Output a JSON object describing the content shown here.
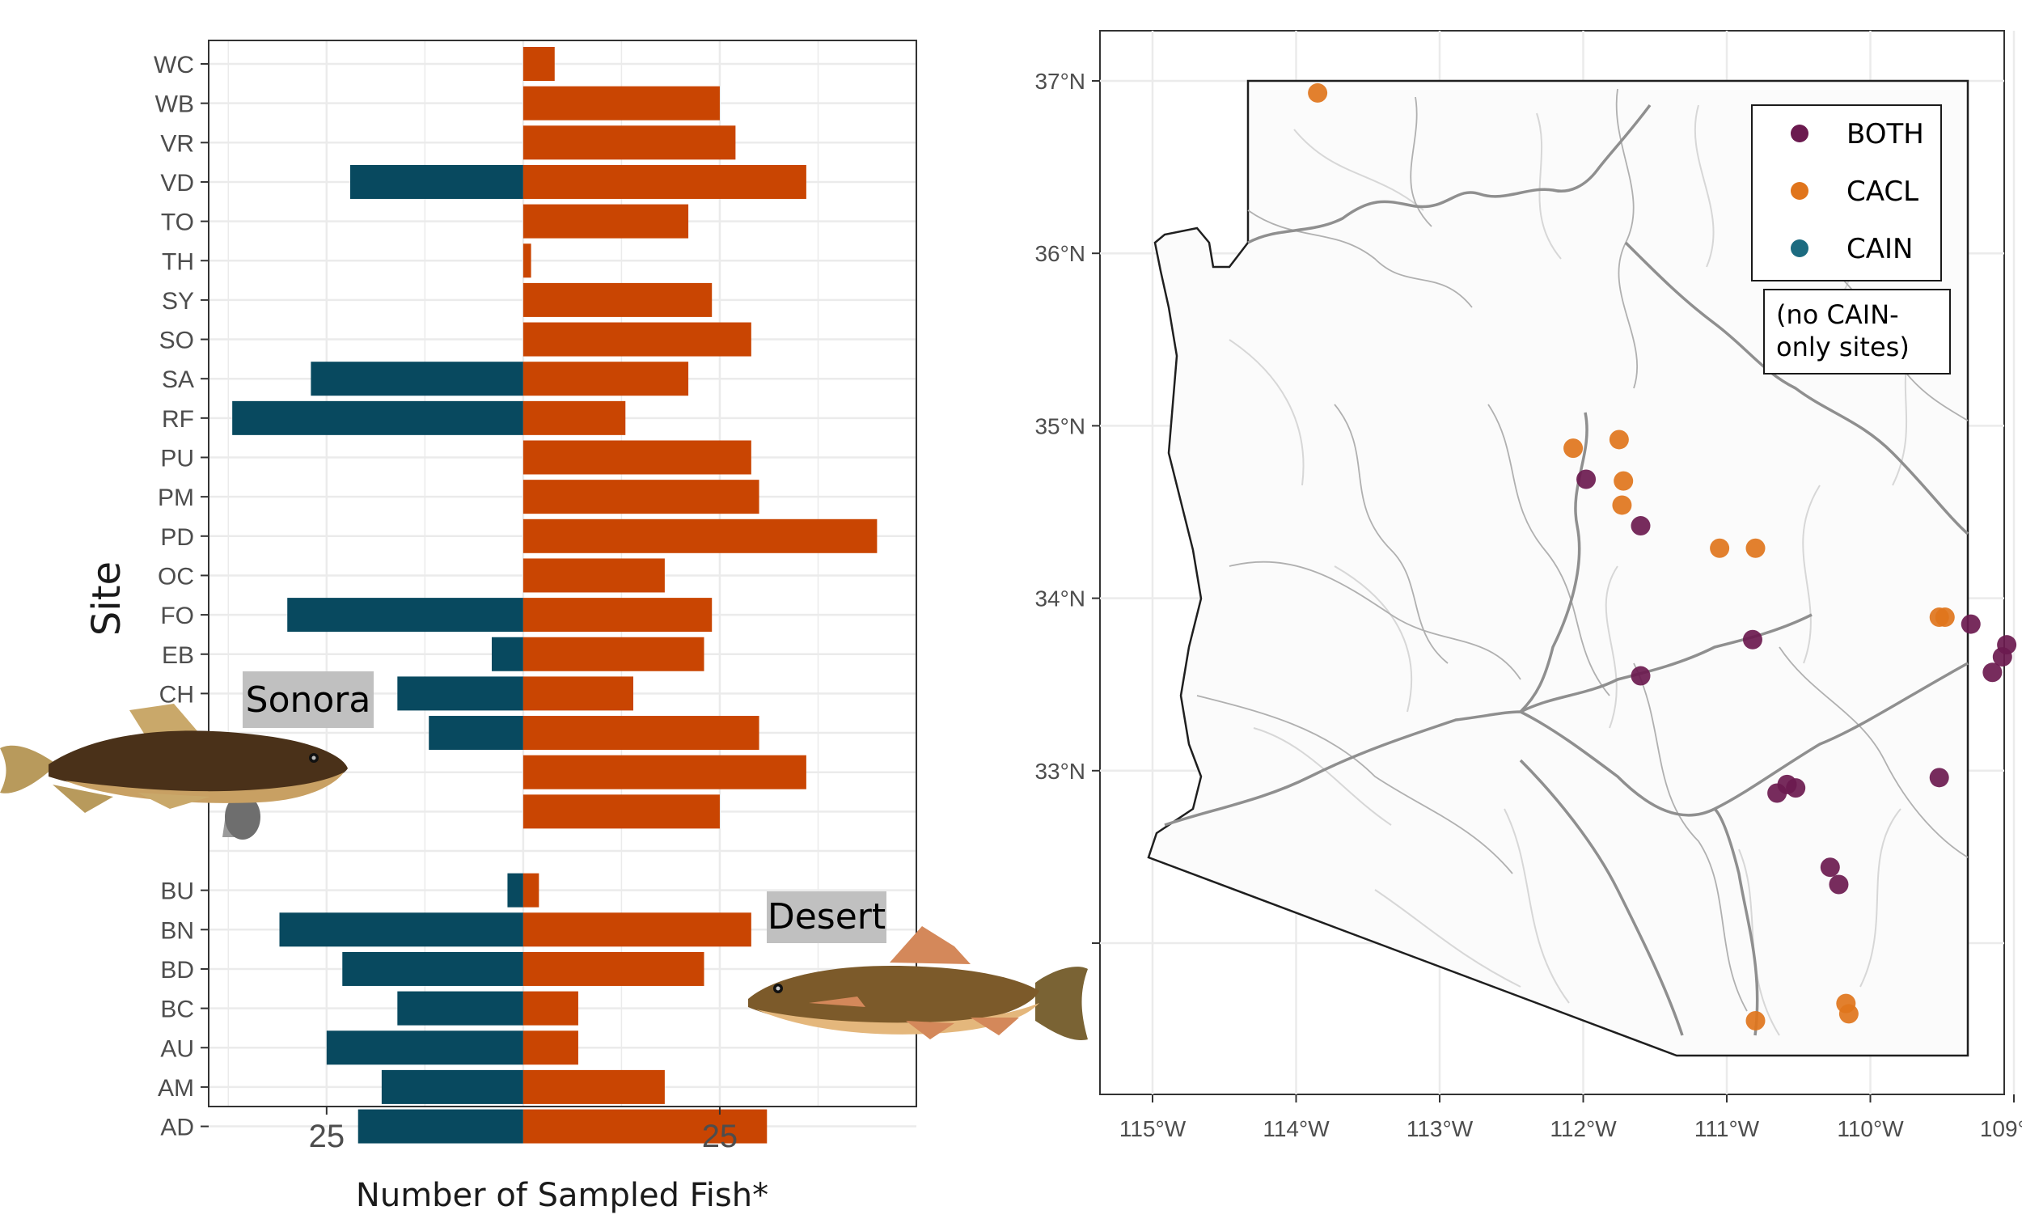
{
  "colors": {
    "cain": "#08495f",
    "cacl": "#c94502",
    "both_point": "#6b1a4f",
    "cacl_point": "#e0751c",
    "cain_point": "#1c6b80",
    "river_dark": "#8a8a8a",
    "river_light": "#cfcfcf",
    "badge_bg": "#c0c0c0"
  },
  "chart_data": [
    {
      "type": "bar",
      "orientation": "horizontal",
      "title": "",
      "xlabel": "Number of Sampled Fish*",
      "ylabel": "Site",
      "xlim": [
        -40,
        50
      ],
      "xticks": [
        -25,
        25
      ],
      "xtick_labels": [
        "25",
        "25"
      ],
      "grid": true,
      "series": [
        {
          "name": "CAIN",
          "values": [
            0,
            0,
            0,
            -22,
            0,
            0,
            0,
            0,
            -27,
            -37,
            0,
            0,
            0,
            0,
            -30,
            -4,
            -16,
            -12,
            0,
            0,
            null,
            -2,
            -31,
            -23,
            -16,
            -25,
            -18,
            -21
          ]
        },
        {
          "name": "CACL",
          "values": [
            4,
            25,
            27,
            36,
            21,
            1,
            24,
            29,
            21,
            13,
            29,
            30,
            45,
            18,
            24,
            23,
            14,
            30,
            36,
            25,
            null,
            2,
            29,
            23,
            7,
            7,
            18,
            31
          ]
        }
      ],
      "categories": [
        "WC",
        "WB",
        "VR",
        "VD",
        "TO",
        "TH",
        "SY",
        "SO",
        "SA",
        "RF",
        "PU",
        "PM",
        "PD",
        "OC",
        "FO",
        "EB",
        "CH",
        "",
        "",
        "",
        "",
        "BU",
        "BN",
        "BD",
        "BC",
        "AU",
        "AM",
        "AD"
      ],
      "annotations": [
        "Sonora",
        "Desert"
      ]
    },
    {
      "type": "scatter",
      "title": "",
      "xlabel": "",
      "ylabel": "",
      "xlim": [
        -115.1,
        -108.8
      ],
      "ylim": [
        31.0,
        37.35
      ],
      "xtick_labels": [
        "115°W",
        "114°W",
        "113°W",
        "112°W",
        "111°W",
        "110°W",
        "109°W"
      ],
      "xticks": [
        -115,
        -114,
        -113,
        -112,
        -111,
        -110,
        -109
      ],
      "ytick_labels": [
        "33°N",
        "34°N",
        "35°N",
        "36°N",
        "37°N"
      ],
      "yticks": [
        33,
        34,
        35,
        36,
        37
      ],
      "legend": {
        "position": "top-right",
        "entries": [
          "BOTH",
          "CACL",
          "CAIN"
        ],
        "note": "(no CAIN-\nonly sites)"
      },
      "series": [
        {
          "name": "BOTH",
          "points": [
            [
              -111.98,
              34.69
            ],
            [
              -111.6,
              34.42
            ],
            [
              -110.82,
              33.76
            ],
            [
              -111.6,
              33.55
            ],
            [
              -109.3,
              33.85
            ],
            [
              -109.05,
              33.73
            ],
            [
              -109.08,
              33.66
            ],
            [
              -109.15,
              33.57
            ],
            [
              -110.65,
              32.87
            ],
            [
              -110.58,
              32.92
            ],
            [
              -110.52,
              32.9
            ],
            [
              -109.52,
              32.96
            ],
            [
              -110.28,
              32.44
            ],
            [
              -110.22,
              32.34
            ]
          ]
        },
        {
          "name": "CACL",
          "points": [
            [
              -113.85,
              36.93
            ],
            [
              -112.07,
              34.87
            ],
            [
              -111.75,
              34.92
            ],
            [
              -111.72,
              34.68
            ],
            [
              -111.73,
              34.54
            ],
            [
              -111.05,
              34.29
            ],
            [
              -110.8,
              34.29
            ],
            [
              -109.48,
              33.89
            ],
            [
              -109.52,
              33.89
            ],
            [
              -110.8,
              31.55
            ],
            [
              -110.17,
              31.65
            ],
            [
              -110.15,
              31.59
            ]
          ]
        },
        {
          "name": "CAIN",
          "points": []
        }
      ]
    }
  ]
}
